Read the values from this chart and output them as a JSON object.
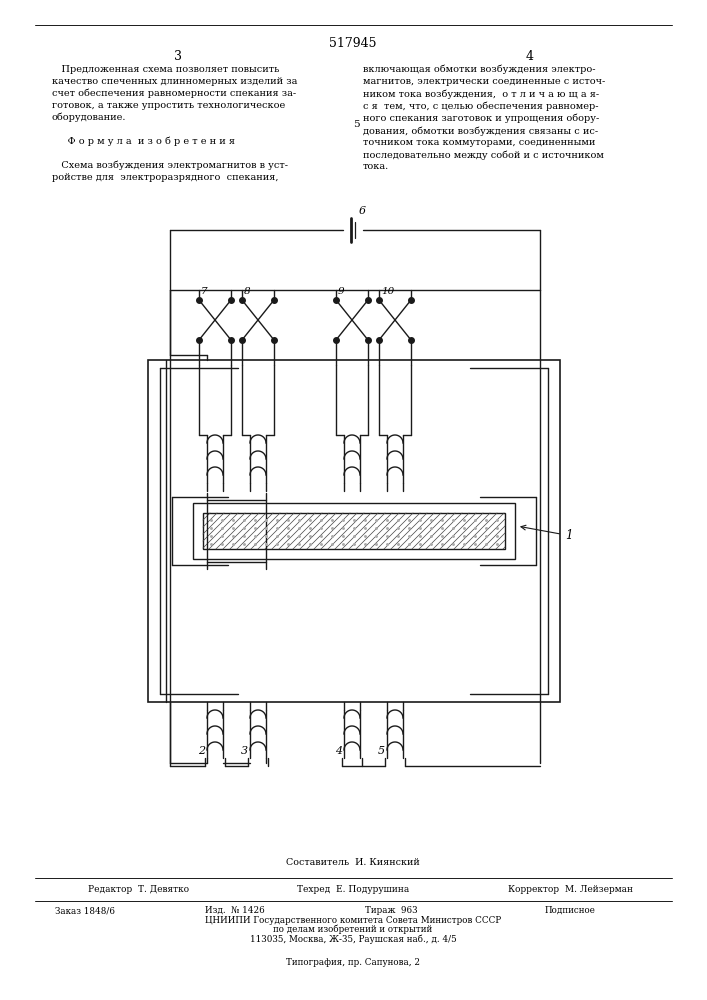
{
  "title": "517945",
  "page_left": "3",
  "page_right": "4",
  "text_left": "   Предложенная схема позволяет повысить\nкачество спеченных длинномерных изделий за\nсчет обеспечения равномерности спекания за-\nготовок, а также упростить технологическое\nоборудование.\n\n     Ф о р м у л а  и з о б р е т е н и я\n\n   Схема возбуждения электромагнитов в уст-\nройстве для  электроразрядного  спекания,",
  "text_right": "включающая обмотки возбуждения электро-\nмагнитов, электрически соединенные с источ-\nником тока возбуждения,  о т л и ч а ю щ а я-\nс я  тем, что, с целью обеспечения равномер-\nного спекания заготовок и упрощения обору-\nдования, обмотки возбуждения связаны с ис-\nточником тока коммуторами, соединенными\nпоследовательно между собой и с источником\nтока.",
  "line_number": "5",
  "footer_composer": "Составитель  И. Киянский",
  "footer_editor": "Редактор  Т. Девятко",
  "footer_tech": "Техред  Е. Подурушина",
  "footer_corrector": "Корректор  М. Лейзерман",
  "footer_order": "Заказ 1848/6",
  "footer_pub": "Изд.  № 1426",
  "footer_print": "Тираж  963",
  "footer_sub": "Подписное",
  "footer_org1": "ЦНИИПИ Государственного комитета Совета Министров СССР",
  "footer_org2": "по делам изобретений и открытий",
  "footer_addr": "113035, Москва, Ж-35, Раушская наб., д. 4/5",
  "footer_typo": "Типография, пр. Сапунова, 2",
  "bg_color": "#ffffff",
  "line_color": "#1a1a1a"
}
